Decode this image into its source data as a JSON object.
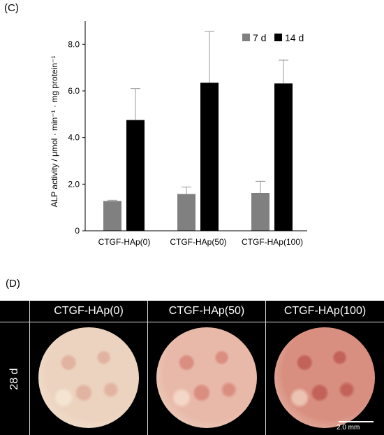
{
  "panel_c_label": "(C)",
  "panel_d_label": "(D)",
  "chart_data": {
    "type": "bar",
    "categories": [
      "CTGF-HAp(0)",
      "CTGF-HAp(50)",
      "CTGF-HAp(100)"
    ],
    "series": [
      {
        "name": "7 d",
        "color": "#808080",
        "values": [
          1.28,
          1.58,
          1.62
        ],
        "errors": [
          0.03,
          0.3,
          0.5
        ]
      },
      {
        "name": "14 d",
        "color": "#000000",
        "values": [
          4.75,
          6.35,
          6.32
        ],
        "errors": [
          1.35,
          2.2,
          1.0
        ]
      }
    ],
    "ylabel": "ALP activity / μmol · min⁻¹ · mg protein⁻¹",
    "yticks": [
      "0",
      "2.0",
      "4.0",
      "6.0",
      "8.0"
    ],
    "ylim": [
      0,
      9
    ],
    "legend_position": "top-right",
    "grid": false
  },
  "panel_d": {
    "columns": [
      "CTGF-HAp(0)",
      "CTGF-HAp(50)",
      "CTGF-HAp(100)"
    ],
    "row_label": "28 d",
    "scale_bar_label": "2.0 mm",
    "stain_colors": [
      "#ecd3bf",
      "#e8b8a8",
      "#d98f80"
    ]
  }
}
